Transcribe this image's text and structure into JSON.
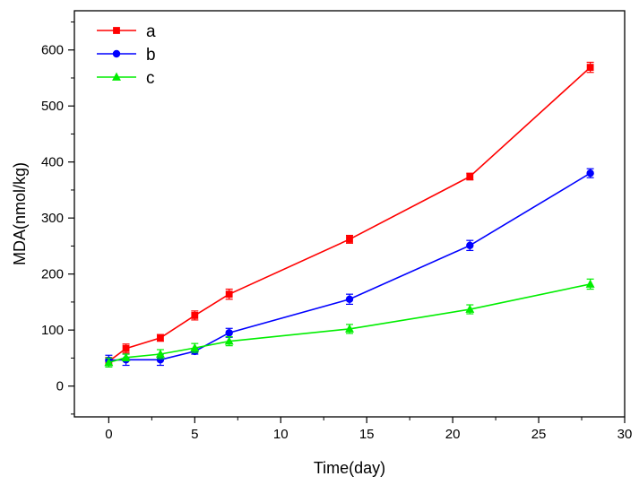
{
  "chart_data": {
    "type": "line",
    "title": "",
    "xlabel": "Time(day)",
    "ylabel": "MDA(nmol/kg)",
    "xlim": [
      -2,
      30
    ],
    "ylim": [
      -55,
      670
    ],
    "x_ticks": [
      0,
      5,
      10,
      15,
      20,
      25,
      30
    ],
    "x_tick_labels": [
      "0",
      "5",
      "10",
      "15",
      "20",
      "25",
      "30"
    ],
    "y_ticks": [
      0,
      100,
      200,
      300,
      400,
      500,
      600
    ],
    "y_tick_labels": [
      "0",
      "100",
      "200",
      "300",
      "400",
      "500",
      "600"
    ],
    "legend_position": "top-left",
    "series": [
      {
        "name": "a",
        "color": "#ff0000",
        "marker": "square",
        "x": [
          0,
          1,
          3,
          5,
          7,
          14,
          21,
          28
        ],
        "values": [
          44,
          67,
          86,
          126,
          164,
          262,
          374,
          569
        ],
        "errors": [
          7,
          8,
          6,
          8,
          9,
          7,
          6,
          9
        ]
      },
      {
        "name": "b",
        "color": "#0000ff",
        "marker": "circle",
        "x": [
          0,
          1,
          3,
          5,
          7,
          14,
          21,
          28
        ],
        "values": [
          46,
          47,
          47,
          62,
          95,
          155,
          251,
          380
        ],
        "errors": [
          9,
          10,
          10,
          5,
          8,
          9,
          9,
          8
        ]
      },
      {
        "name": "c",
        "color": "#00ee00",
        "marker": "triangle",
        "x": [
          0,
          1,
          3,
          5,
          7,
          14,
          21,
          28
        ],
        "values": [
          42,
          51,
          57,
          68,
          80,
          102,
          137,
          182
        ],
        "errors": [
          8,
          6,
          8,
          8,
          8,
          8,
          8,
          9
        ]
      }
    ]
  }
}
